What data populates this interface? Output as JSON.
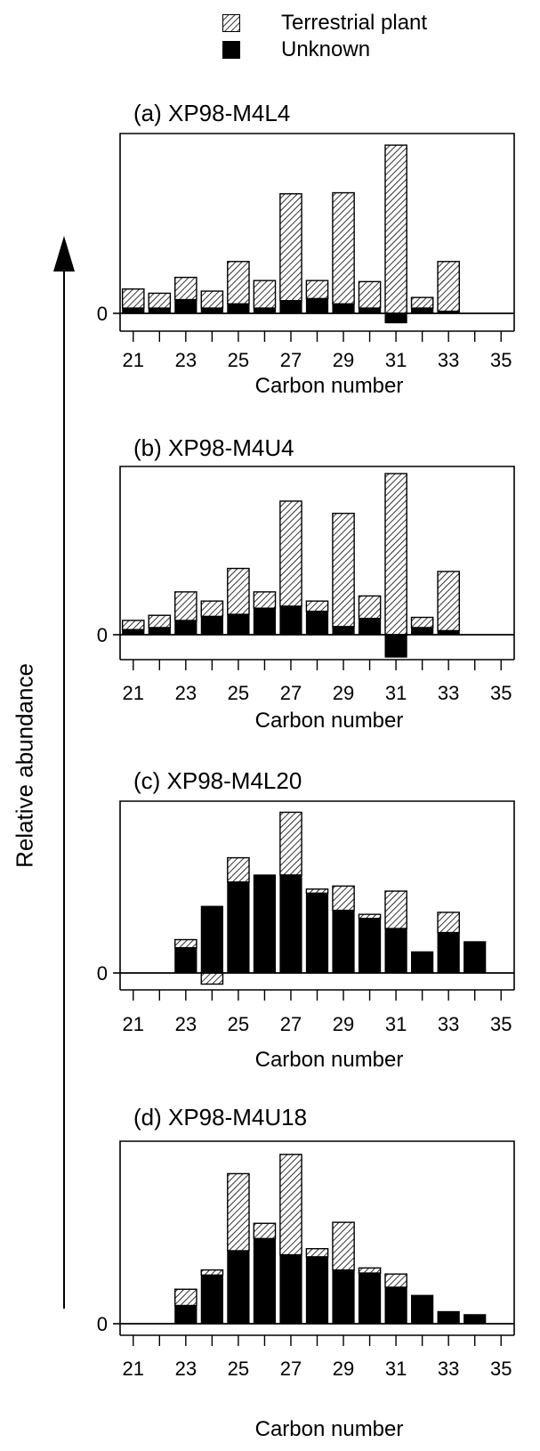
{
  "legend": {
    "items": [
      {
        "label": "Terrestrial plant",
        "style": "hatch"
      },
      {
        "label": "Unknown",
        "style": "solid"
      }
    ]
  },
  "ylabel": "Relative abundance",
  "chart_data": [
    {
      "type": "bar",
      "stacked": true,
      "title": "(a) XP98-M4L4",
      "xlabel": "Carbon number",
      "x": [
        21,
        22,
        23,
        24,
        25,
        26,
        27,
        28,
        29,
        30,
        31,
        32,
        33,
        34,
        35
      ],
      "xticks": [
        21,
        23,
        25,
        27,
        29,
        31,
        33,
        35
      ],
      "yticks": [
        0
      ],
      "ylim": [
        -10,
        170
      ],
      "series": [
        {
          "name": "Unknown",
          "values": [
            5,
            5,
            13,
            5,
            9,
            5,
            12,
            14,
            9,
            5,
            -9,
            5,
            2,
            0,
            0
          ]
        },
        {
          "name": "Terrestrial plant",
          "values": [
            18,
            14,
            21,
            16,
            40,
            26,
            101,
            17,
            105,
            25,
            159,
            10,
            47,
            0,
            0
          ]
        }
      ]
    },
    {
      "type": "bar",
      "stacked": true,
      "title": "(b) XP98-M4U4",
      "xlabel": "Carbon number",
      "x": [
        21,
        22,
        23,
        24,
        25,
        26,
        27,
        28,
        29,
        30,
        31,
        32,
        33,
        34,
        35
      ],
      "xticks": [
        21,
        23,
        25,
        27,
        29,
        31,
        33,
        35
      ],
      "yticks": [
        0
      ],
      "ylim": [
        -25,
        165
      ],
      "series": [
        {
          "name": "Unknown",
          "values": [
            5,
            7,
            14,
            18,
            20,
            26,
            28,
            23,
            8,
            16,
            -22,
            7,
            4,
            0,
            0
          ]
        },
        {
          "name": "Terrestrial plant",
          "values": [
            9,
            12,
            28,
            15,
            45,
            16,
            103,
            10,
            111,
            22,
            158,
            10,
            58,
            0,
            0
          ]
        }
      ]
    },
    {
      "type": "bar",
      "stacked": true,
      "title": "(c) XP98-M4L20",
      "xlabel": "Carbon number",
      "x": [
        21,
        22,
        23,
        24,
        25,
        26,
        27,
        28,
        29,
        30,
        31,
        32,
        33,
        34,
        35
      ],
      "xticks": [
        21,
        23,
        25,
        27,
        29,
        31,
        33,
        35
      ],
      "yticks": [
        0
      ],
      "ylim": [
        -10,
        170
      ],
      "series": [
        {
          "name": "Unknown",
          "values": [
            0,
            0,
            25,
            66,
            90,
            97,
            97,
            79,
            62,
            54,
            44,
            21,
            40,
            31,
            0
          ]
        },
        {
          "name": "Terrestrial plant",
          "values": [
            0,
            0,
            8,
            -11,
            24,
            0,
            62,
            4,
            24,
            4,
            37,
            0,
            20,
            0,
            0
          ]
        }
      ]
    },
    {
      "type": "bar",
      "stacked": true,
      "title": "(d) XP98-M4U18",
      "xlabel": "Carbon number",
      "x": [
        21,
        22,
        23,
        24,
        25,
        26,
        27,
        28,
        29,
        30,
        31,
        32,
        33,
        34,
        35
      ],
      "xticks": [
        21,
        23,
        25,
        27,
        29,
        31,
        33,
        35
      ],
      "yticks": [
        0
      ],
      "ylim": [
        -5,
        180
      ],
      "series": [
        {
          "name": "Unknown",
          "values": [
            0,
            0,
            18,
            48,
            72,
            84,
            68,
            66,
            53,
            50,
            36,
            28,
            12,
            9,
            0
          ]
        },
        {
          "name": "Terrestrial plant",
          "values": [
            0,
            0,
            16,
            5,
            76,
            15,
            99,
            8,
            47,
            5,
            13,
            0,
            0,
            0,
            0
          ]
        }
      ]
    }
  ]
}
